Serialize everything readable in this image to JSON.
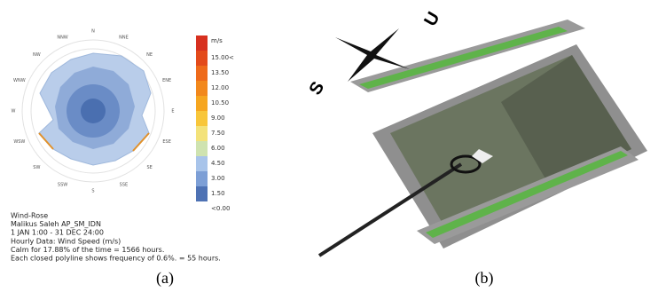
{
  "panel_a": {
    "directions": [
      "N",
      "NNE",
      "NE",
      "ENE",
      "E",
      "ESE",
      "SE",
      "SSE",
      "S",
      "SSW",
      "SW",
      "WSW",
      "W",
      "WNW",
      "NW",
      "NNW"
    ],
    "legend": {
      "unit": "m/s",
      "labels": [
        "15.00<",
        "13.50",
        "12.00",
        "10.50",
        "9.00",
        "7.50",
        "6.00",
        "4.50",
        "3.00",
        "1.50",
        "<0.00"
      ]
    },
    "info": [
      "Wind-Rose",
      "Malikus Saleh AP_SM_IDN",
      "1 JAN 1:00 - 31 DEC 24:00",
      "Hourly Data: Wind Speed (m/s)",
      "Calm for 17.88% of the time = 1566 hours.",
      "Each closed polyline shows frequency of 0.6%. = 55 hours."
    ]
  },
  "panel_b": {
    "compass": [
      "U",
      "S"
    ]
  },
  "captions": [
    "(a)",
    "(b)"
  ]
}
